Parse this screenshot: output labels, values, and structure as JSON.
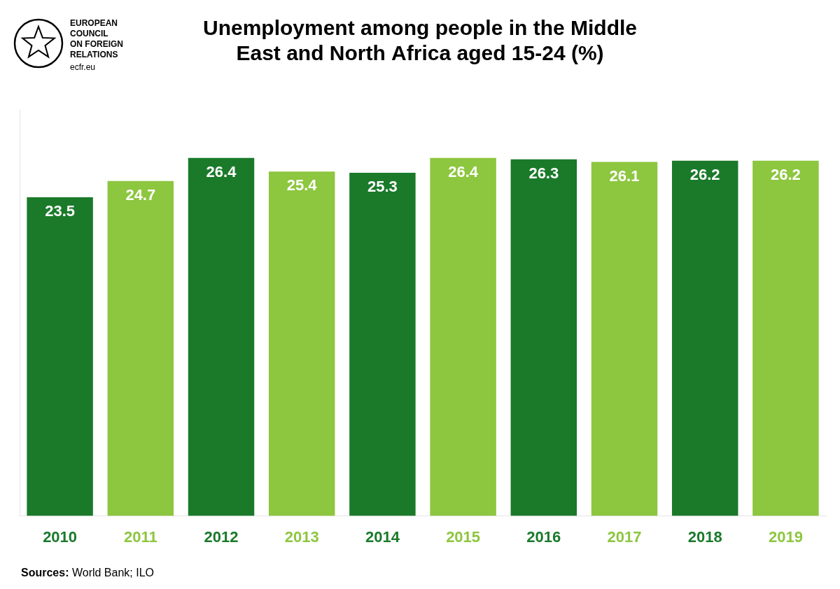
{
  "chart_data": {
    "type": "bar",
    "title": "Unemployment among people in the Middle\nEast and North Africa aged 15-24 (%)",
    "categories": [
      "2010",
      "2011",
      "2012",
      "2013",
      "2014",
      "2015",
      "2016",
      "2017",
      "2018",
      "2019"
    ],
    "values": [
      23.5,
      24.7,
      26.4,
      25.4,
      25.3,
      26.4,
      26.3,
      26.1,
      26.2,
      26.2
    ],
    "colors": [
      "#1a7a2a",
      "#8dc63f",
      "#1a7a2a",
      "#8dc63f",
      "#1a7a2a",
      "#8dc63f",
      "#1a7a2a",
      "#8dc63f",
      "#1a7a2a",
      "#8dc63f"
    ],
    "ylim": [
      0,
      30
    ],
    "grid": false,
    "data_labels": true,
    "tick_labels": "x",
    "annotations": [
      "EUROPEAN",
      "COUNCIL",
      "ON FOREIGN",
      "RELATIONS",
      "ecfr.eu",
      "Sources: World Bank; ILO"
    ]
  }
}
